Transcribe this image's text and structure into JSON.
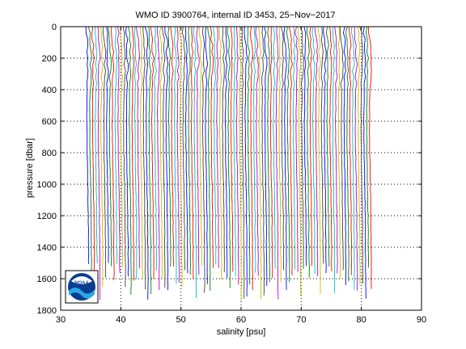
{
  "chart_data": {
    "type": "line",
    "title": "WMO ID 3900764, internal ID 3453, 25−Nov−2017",
    "xlabel": "salinity [psu]",
    "ylabel": "pressure [dbar]",
    "xlim": [
      30,
      90
    ],
    "ylim": [
      0,
      1800
    ],
    "y_reversed": true,
    "x_ticks": [
      30,
      40,
      50,
      60,
      70,
      80,
      90
    ],
    "x_tick_labels": [
      "30",
      "40",
      "50",
      "60",
      "70",
      "80",
      "90"
    ],
    "y_ticks": [
      0,
      200,
      400,
      600,
      800,
      1000,
      1200,
      1400,
      1600,
      1800
    ],
    "y_tick_labels": [
      "0",
      "200",
      "400",
      "600",
      "800",
      "1000",
      "1200",
      "1400",
      "1600",
      "1800"
    ],
    "grid": true,
    "grid_style": "dotted",
    "series_colors": [
      "#0000ff",
      "#008000",
      "#ff0000",
      "#00bfbf",
      "#bf00bf",
      "#bfbf00",
      "#404040"
    ],
    "profile_count": 101,
    "profile_offset_step": 0.47,
    "first_profile_base_salinity": 34.3,
    "profile_shape": {
      "pressure": [
        0,
        100,
        200,
        300,
        400,
        500,
        600,
        800,
        1000,
        1200,
        1400,
        1500
      ],
      "salinity_anomaly": [
        0.0,
        0.15,
        0.25,
        0.2,
        0.12,
        0.08,
        0.05,
        0.1,
        0.2,
        0.28,
        0.33,
        0.35
      ]
    },
    "max_pressure_range": [
      1500,
      1740
    ]
  },
  "logo": {
    "name": "noaa-logo",
    "text": "NOAA"
  }
}
